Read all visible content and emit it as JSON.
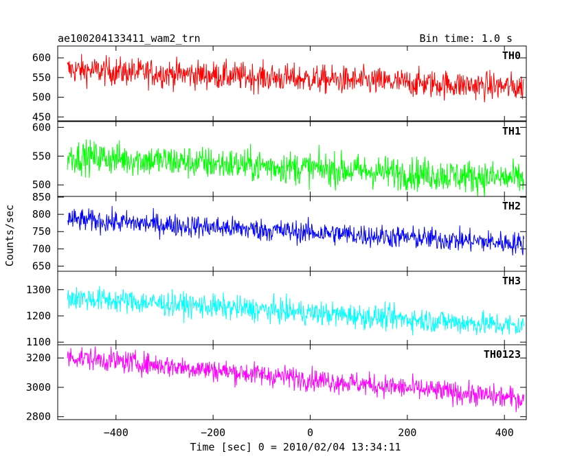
{
  "header": {
    "title": "ae100204133411_wam2_trn",
    "bin_time": "Bin time: 1.0 s"
  },
  "chart_data": {
    "type": "line",
    "title": "ae100204133411_wam2_trn",
    "subtitle": "Bin time: 1.0 s",
    "xlabel": "Time [sec] 0 = 2010/02/04 13:34:11",
    "ylabel": "Counts/sec",
    "xlim": [
      -520,
      445
    ],
    "x_ticks": [
      -400,
      -200,
      0,
      200,
      400
    ],
    "x_tick_labels": [
      "−400",
      "−200",
      "0",
      "200",
      "400"
    ],
    "x_range_data": [
      -500,
      440
    ],
    "grid": false,
    "panels": [
      {
        "name": "TH0",
        "color": "#ff0000",
        "ylim": [
          440,
          630
        ],
        "y_ticks": [
          450,
          500,
          550,
          600
        ],
        "trend": {
          "start": 570,
          "end": 525
        },
        "noise_amplitude": 35
      },
      {
        "name": "TH1",
        "color": "#00ff00",
        "ylim": [
          480,
          610
        ],
        "y_ticks": [
          500,
          550,
          600
        ],
        "trend": {
          "start": 550,
          "end": 510
        },
        "noise_amplitude": 28
      },
      {
        "name": "TH2",
        "color": "#0000ff",
        "ylim": [
          635,
          852
        ],
        "y_ticks": [
          650,
          700,
          750,
          800,
          850
        ],
        "trend": {
          "start": 785,
          "end": 715
        },
        "noise_amplitude": 32
      },
      {
        "name": "TH3",
        "color": "#00ffff",
        "ylim": [
          1090,
          1370
        ],
        "y_ticks": [
          1100,
          1200,
          1300
        ],
        "trend": {
          "start": 1270,
          "end": 1160
        },
        "noise_amplitude": 45
      },
      {
        "name": "TH0123",
        "color": "#ff00ff",
        "ylim": [
          2780,
          3290
        ],
        "y_ticks": [
          2800,
          3000,
          3200
        ],
        "trend": {
          "start": 3210,
          "end": 2920
        },
        "noise_amplitude": 75
      }
    ]
  }
}
